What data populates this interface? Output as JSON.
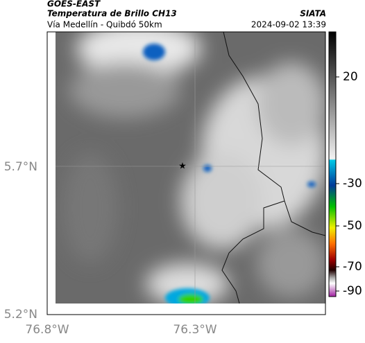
{
  "header": {
    "agency": "GOES-EAST",
    "product": "Temperatura de Brillo CH13",
    "region": "Vía Medellín - Quibdó 50km",
    "source": "SIATA",
    "timestamp": "2024-09-02 13:39"
  },
  "axes": {
    "lat_labels": [
      "5.7°N",
      "5.2°N"
    ],
    "lon_labels": [
      "76.8°W",
      "76.3°W"
    ]
  },
  "colorbar": {
    "ticks": [
      20,
      -30,
      -50,
      -70,
      -90
    ]
  }
}
